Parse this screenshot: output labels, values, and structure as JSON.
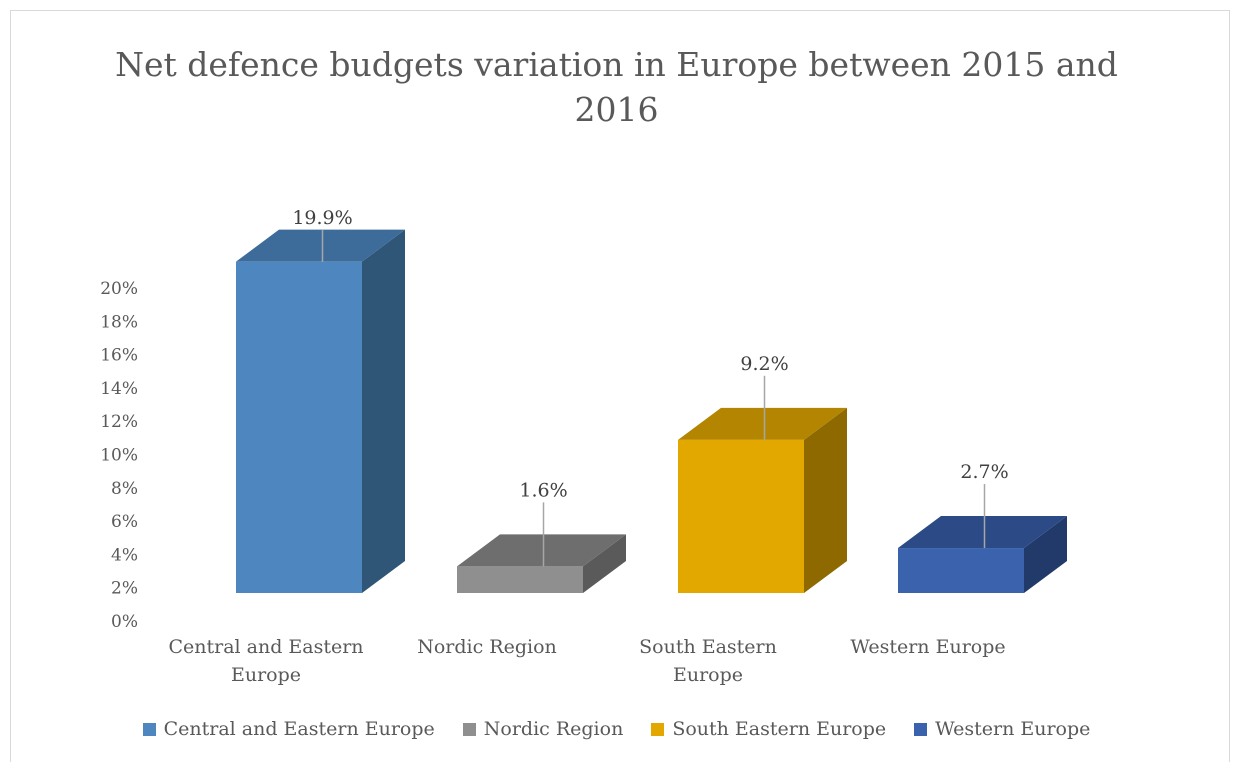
{
  "chart_data": {
    "type": "bar",
    "title_lines": [
      "Net defence budgets variation in Europe between 2015 and",
      "2016"
    ],
    "categories": [
      "Central and Eastern Europe",
      "Nordic Region",
      "South Eastern Europe",
      "Western Europe"
    ],
    "category_labels": [
      [
        "Central and Eastern",
        "Europe"
      ],
      [
        "Nordic Region"
      ],
      [
        "South Eastern",
        "Europe"
      ],
      [
        "Western Europe"
      ]
    ],
    "values": [
      19.9,
      1.6,
      9.2,
      2.7
    ],
    "data_labels": [
      "19.9%",
      "1.6%",
      "9.2%",
      "2.7%"
    ],
    "yticks": [
      "0%",
      "2%",
      "4%",
      "6%",
      "8%",
      "10%",
      "12%",
      "14%",
      "16%",
      "18%",
      "20%"
    ],
    "ylim": [
      0,
      20
    ],
    "xlabel": "",
    "ylabel": "",
    "grid": false,
    "style": "3d-column",
    "legend": "bottom",
    "legend_entries": [
      "Central and Eastern Europe",
      "Nordic Region",
      "South Eastern Europe",
      "Western Europe"
    ],
    "colors": {
      "front": [
        "#4e86bf",
        "#8f8f8f",
        "#e2a800",
        "#3b63ad"
      ],
      "top": [
        "#3d6c9b",
        "#6e6e6e",
        "#b48500",
        "#2c4b86"
      ],
      "side": [
        "#2f5677",
        "#5a5a5a",
        "#8d6900",
        "#213a69"
      ]
    }
  }
}
